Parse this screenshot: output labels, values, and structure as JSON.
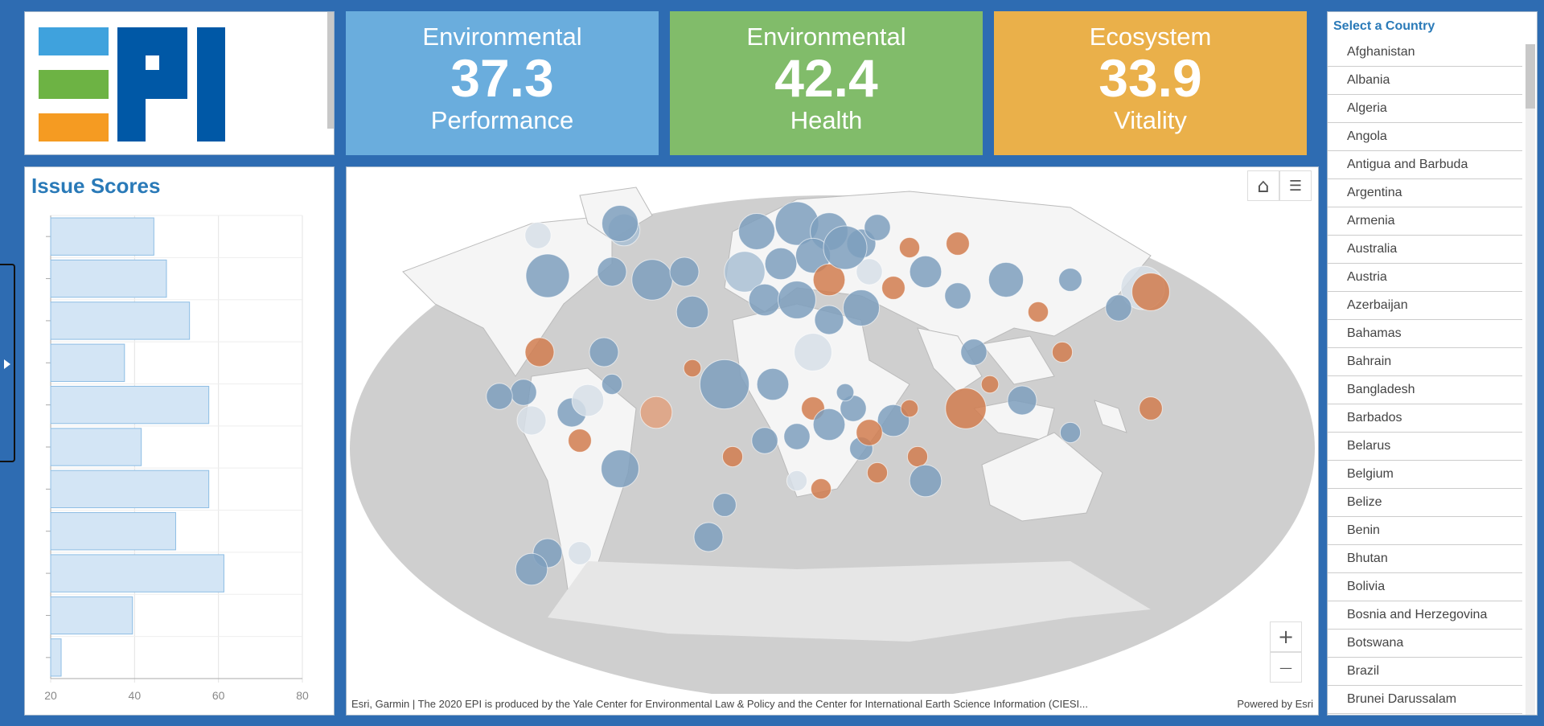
{
  "logo": {
    "text": "EPI",
    "colors": [
      "#3fa2dd",
      "#6db344",
      "#f59b22",
      "#0058a6"
    ]
  },
  "cards": [
    {
      "top": "Environmental",
      "value": "37.3",
      "bottom": "Performance",
      "color": "#6aaddd"
    },
    {
      "top": "Environmental",
      "value": "42.4",
      "bottom": "Health",
      "color": "#81bc6a"
    },
    {
      "top": "Ecosystem",
      "value": "33.9",
      "bottom": "Vitality",
      "color": "#eab04a"
    }
  ],
  "issues": {
    "title": "Issue Scores"
  },
  "chart_data": {
    "type": "bar",
    "orientation": "horizontal",
    "title": "Issue Scores",
    "values": [
      44.6,
      47.6,
      53.1,
      37.6,
      57.7,
      41.6,
      57.7,
      49.8,
      61.3,
      39.5,
      22.5
    ],
    "xlim": [
      20,
      80
    ],
    "xticks": [
      "20",
      "40",
      "60",
      "80"
    ],
    "grid": true
  },
  "map": {
    "attribution": "Esri, Garmin | The 2020 EPI is produced by the Yale Center for Environmental Law & Policy and the Center for International Earth Science Information (CIESI...",
    "powered": "Powered by Esri",
    "zoom_in": "+",
    "zoom_out": "—"
  },
  "countries": {
    "title": "Select a Country",
    "items": [
      "Afghanistan",
      "Albania",
      "Algeria",
      "Angola",
      "Antigua and Barbuda",
      "Argentina",
      "Armenia",
      "Australia",
      "Austria",
      "Azerbaijan",
      "Bahamas",
      "Bahrain",
      "Bangladesh",
      "Barbados",
      "Belarus",
      "Belgium",
      "Belize",
      "Benin",
      "Bhutan",
      "Bolivia",
      "Bosnia and Herzegovina",
      "Botswana",
      "Brazil",
      "Brunei Darussalam"
    ]
  }
}
